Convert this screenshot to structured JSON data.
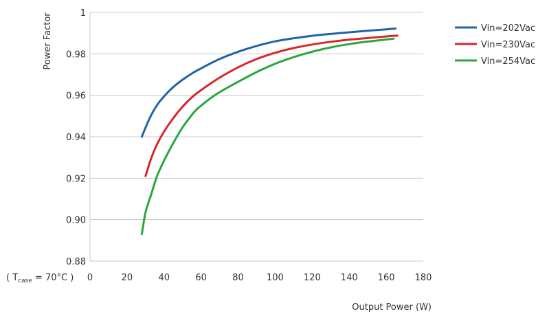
{
  "chart_data": {
    "type": "line",
    "title": "",
    "xlabel": "Output Power (W)",
    "ylabel": "Power Factor",
    "xlim": [
      0,
      180
    ],
    "ylim": [
      0.88,
      1.0
    ],
    "x_ticks": [
      "0",
      "20",
      "40",
      "60",
      "80",
      "100",
      "120",
      "140",
      "160",
      "180"
    ],
    "y_ticks": [
      "0.88",
      "0.90",
      "0.92",
      "0.94",
      "0.96",
      "0.98",
      "1"
    ],
    "grid": "horizontal",
    "legend_position": "right",
    "condition_note": {
      "prefix": "( T",
      "subscript": "case",
      "suffix": " = 70°C )"
    },
    "series": [
      {
        "name": "Vin=202Vac",
        "color": "#1f64a8",
        "x": [
          28,
          32,
          36,
          40,
          45,
          50,
          55,
          60,
          70,
          80,
          90,
          100,
          110,
          120,
          130,
          140,
          150,
          160,
          165
        ],
        "y": [
          0.94,
          0.9485,
          0.955,
          0.9595,
          0.964,
          0.9675,
          0.9705,
          0.973,
          0.9775,
          0.981,
          0.9838,
          0.986,
          0.9875,
          0.9887,
          0.9896,
          0.9904,
          0.9911,
          0.9918,
          0.9922
        ]
      },
      {
        "name": "Vin=230Vac",
        "color": "#d7262b",
        "x": [
          30,
          33,
          36,
          40,
          45,
          50,
          55,
          60,
          70,
          80,
          90,
          100,
          110,
          120,
          130,
          140,
          150,
          160,
          166
        ],
        "y": [
          0.921,
          0.9295,
          0.936,
          0.9425,
          0.949,
          0.9545,
          0.959,
          0.9625,
          0.9685,
          0.9735,
          0.9775,
          0.9805,
          0.9828,
          0.9845,
          0.9858,
          0.9868,
          0.9876,
          0.9884,
          0.9888
        ]
      },
      {
        "name": "Vin=254Vac",
        "color": "#2aa63f",
        "x": [
          28,
          30,
          33,
          36,
          40,
          45,
          50,
          55,
          58,
          65,
          70,
          80,
          90,
          100,
          110,
          120,
          130,
          140,
          150,
          160,
          164
        ],
        "y": [
          0.893,
          0.9035,
          0.912,
          0.9205,
          0.9285,
          0.937,
          0.9445,
          0.9505,
          0.9535,
          0.9585,
          0.9615,
          0.9665,
          0.9712,
          0.9752,
          0.9784,
          0.981,
          0.9831,
          0.9847,
          0.9859,
          0.9869,
          0.9873
        ]
      }
    ]
  }
}
